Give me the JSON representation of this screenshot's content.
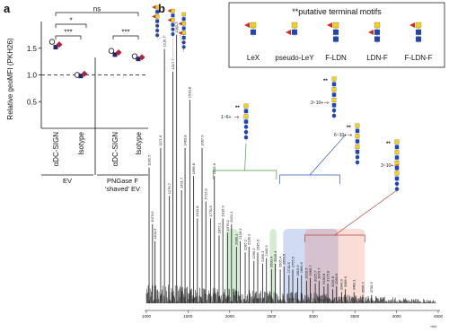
{
  "panel_labels": [
    "a",
    "b"
  ],
  "motif_mark": "**",
  "legend": {
    "title": "**putative terminal motifs",
    "items": [
      "LeX",
      "pseudo-LeY",
      "F-LDN",
      "LDN-F",
      "F-LDN-F"
    ]
  },
  "chart_data": [
    {
      "type": "dotplot",
      "y_label": "Relative geoMFI (PKH26)",
      "categories": [
        "αDC-SIGN",
        "Isotype",
        "αDC-SIGN",
        "Isotype"
      ],
      "groups": [
        [
          "EV"
        ],
        [
          "PNGase F",
          "'shaved' EV"
        ]
      ],
      "series": [
        {
          "color": "#ffffff",
          "values": [
            1.62,
            1.0,
            1.45,
            1.35
          ]
        },
        {
          "color": "#1f2a6e",
          "values": [
            1.52,
            0.98,
            1.38,
            1.3
          ]
        },
        {
          "color": "#b0253a",
          "values": [
            1.57,
            1.02,
            1.42,
            1.33
          ]
        }
      ],
      "ylim": [
        0,
        2
      ],
      "yticks": [
        {
          "value": 0.5,
          "label": "0.5"
        },
        {
          "value": 1,
          "label": "1.0"
        },
        {
          "value": 1.5,
          "label": "1.5"
        }
      ],
      "reference_line": 1,
      "annotations": [
        "ns",
        "*",
        "***",
        "***"
      ]
    },
    {
      "type": "spectrum",
      "x_label": "m/z",
      "x": [
        1032.5,
        1073.6,
        1104.3,
        1171.6,
        1216.7,
        1276.7,
        1317.7,
        1362.7,
        1421.7,
        1463.8,
        1520.8,
        1566.8,
        1611.8,
        1667.9,
        1712.9,
        1770.9,
        1815.9,
        1872.1,
        1916.9,
        1976.1,
        2021.1,
        2080.1,
        2126.1,
        2185.2,
        2230.2,
        2290.2,
        2335.3,
        2395.3,
        2440.3,
        2500.4,
        2545.4,
        2605.4,
        2650.5,
        2710.5,
        2755.5,
        2815.6,
        2860.6,
        2920.6,
        2965.7,
        3025.7,
        3070.7,
        3130.8,
        3175.8,
        3235.8,
        3280.9,
        3340.9,
        3386.9,
        3490.1,
        3595.2,
        3700.3
      ],
      "values": [
        48,
        28,
        22,
        55,
        90,
        38,
        82,
        95,
        40,
        55,
        72,
        45,
        30,
        55,
        36,
        30,
        45,
        24,
        30,
        25,
        28,
        20,
        22,
        18,
        20,
        15,
        18,
        14,
        16,
        12,
        14,
        12,
        13,
        10,
        12,
        9,
        10,
        8,
        9,
        7,
        8,
        6,
        7,
        5,
        6,
        4,
        5,
        4,
        3,
        3
      ],
      "color": "#1a1a1a",
      "xlim": [
        1000,
        4500
      ],
      "xticks": [
        1000,
        1500,
        2000,
        2500,
        3000,
        3500,
        4000,
        4500
      ],
      "charge_labels": [
        "1~6+",
        "3~10+",
        "6~10+",
        "3~10+"
      ]
    }
  ]
}
